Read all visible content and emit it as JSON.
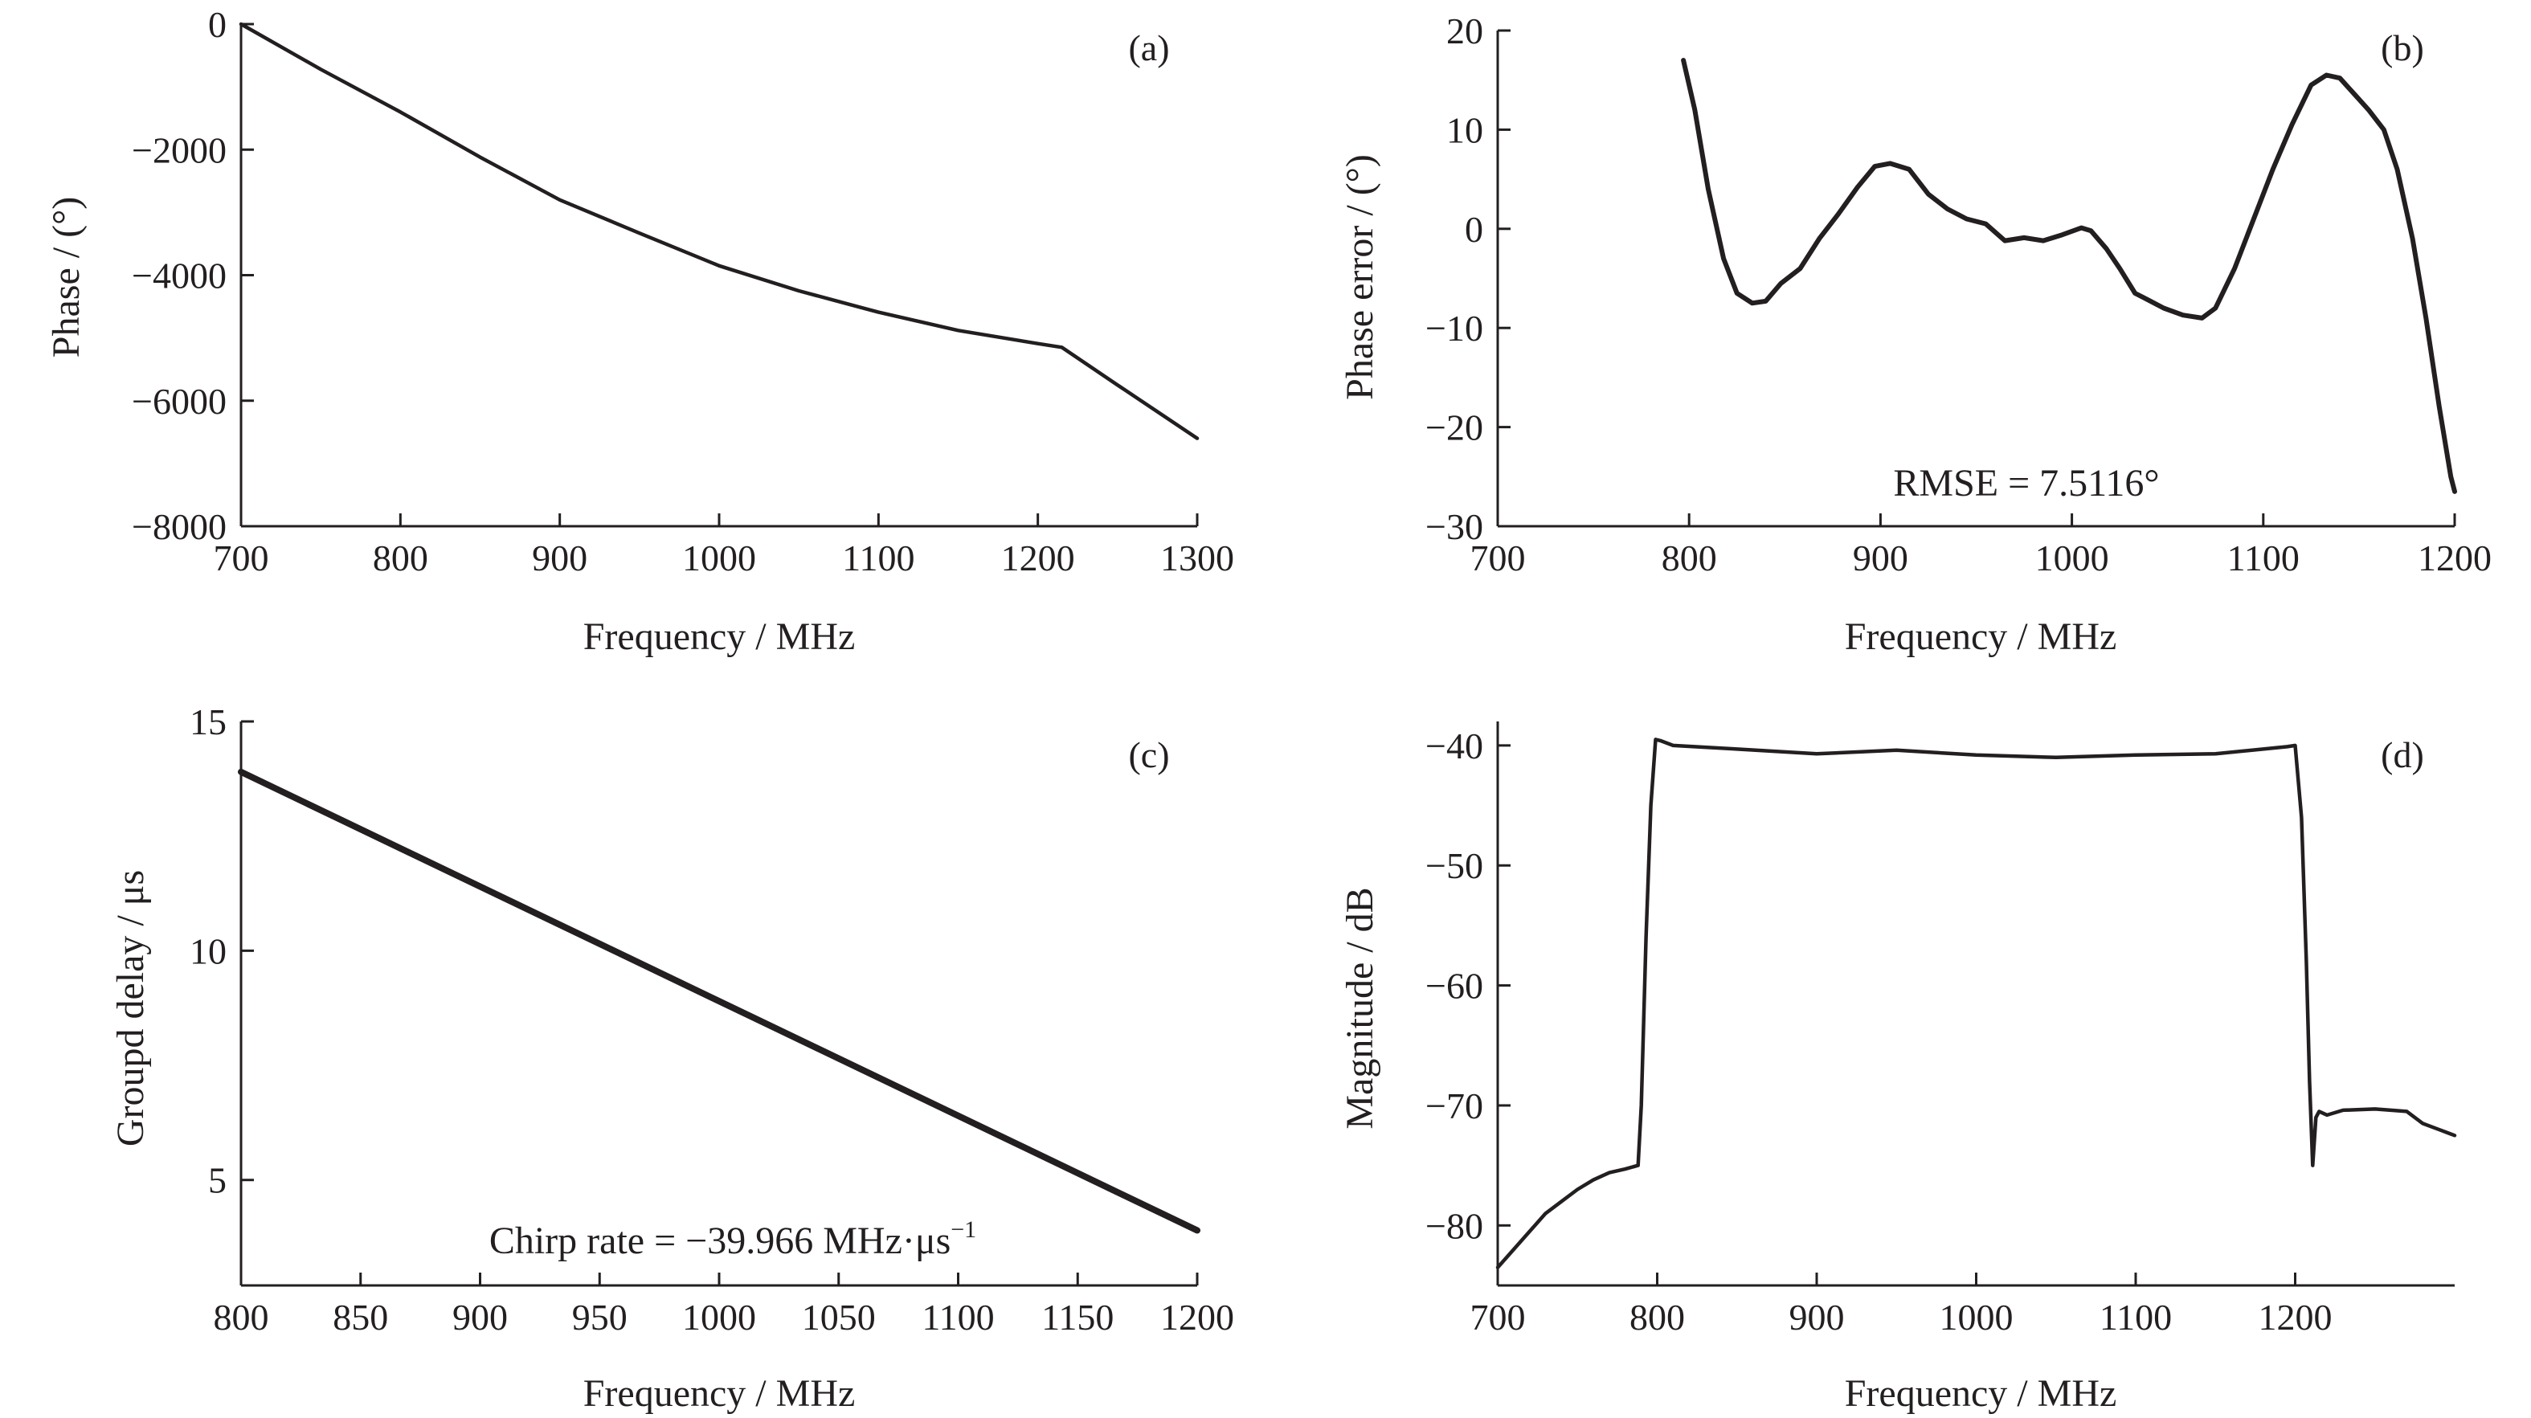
{
  "colors": {
    "ink": "#231f20",
    "background": "#ffffff"
  },
  "chart_data": [
    {
      "id": "a",
      "type": "line",
      "panel_label": "(a)",
      "xlabel": "Frequency / MHz",
      "ylabel": "Phase / (°)",
      "xlim": [
        700,
        1300
      ],
      "ylim": [
        -8000,
        0
      ],
      "xticks": [
        700,
        800,
        900,
        1000,
        1100,
        1200,
        1300
      ],
      "yticks": [
        0,
        -2000,
        -4000,
        -6000,
        -8000
      ],
      "ytick_labels": [
        "0",
        "−2000",
        "−4000",
        "−6000",
        "−8000"
      ],
      "grid": false,
      "annotation": "",
      "series": [
        {
          "x": [
            700,
            750,
            800,
            850,
            900,
            950,
            1000,
            1050,
            1100,
            1150,
            1200,
            1215,
            1250,
            1300
          ],
          "y": [
            0,
            -720,
            -1400,
            -2120,
            -2800,
            -3330,
            -3850,
            -4250,
            -4590,
            -4880,
            -5090,
            -5150,
            -5750,
            -6600
          ]
        }
      ]
    },
    {
      "id": "b",
      "type": "line",
      "panel_label": "(b)",
      "xlabel": "Frequency / MHz",
      "ylabel": "Phase error / (°)",
      "xlim": [
        700,
        1200
      ],
      "ylim": [
        -30,
        20
      ],
      "xticks": [
        700,
        800,
        900,
        1000,
        1100,
        1200
      ],
      "yticks": [
        20,
        10,
        0,
        -10,
        -20,
        -30
      ],
      "ytick_labels": [
        "20",
        "10",
        "0",
        "−10",
        "−20",
        "−30"
      ],
      "grid": false,
      "annotation": "RMSE = 7.5116°",
      "series": [
        {
          "x": [
            797,
            803,
            810,
            818,
            825,
            833,
            840,
            848,
            858,
            868,
            878,
            888,
            897,
            905,
            915,
            925,
            935,
            945,
            955,
            965,
            975,
            985,
            995,
            1005,
            1010,
            1018,
            1025,
            1033,
            1040,
            1048,
            1058,
            1068,
            1075,
            1085,
            1095,
            1105,
            1115,
            1125,
            1133,
            1140,
            1148,
            1155,
            1163,
            1170,
            1178,
            1185,
            1192,
            1198,
            1200
          ],
          "y": [
            17,
            12,
            4,
            -3,
            -6.5,
            -7.5,
            -7.3,
            -5.5,
            -4,
            -1,
            1.5,
            4.2,
            6.3,
            6.6,
            6,
            3.5,
            2,
            1,
            0.5,
            -1.2,
            -0.9,
            -1.2,
            -0.6,
            0.1,
            -0.2,
            -2,
            -4,
            -6.5,
            -7.2,
            -8,
            -8.7,
            -9,
            -8,
            -4,
            1,
            6,
            10.5,
            14.5,
            15.5,
            15.2,
            13.5,
            12,
            10,
            6,
            -1,
            -9,
            -18,
            -25,
            -26.5
          ]
        }
      ]
    },
    {
      "id": "c",
      "type": "line",
      "panel_label": "(c)",
      "xlabel": "Frequency / MHz",
      "ylabel": "Groupd delay / μs",
      "xlim": [
        800,
        1200
      ],
      "ylim": [
        2.7,
        15
      ],
      "xticks": [
        800,
        850,
        900,
        950,
        1000,
        1050,
        1100,
        1150,
        1200
      ],
      "yticks": [
        15,
        10,
        5
      ],
      "ytick_labels": [
        "15",
        "10",
        "5"
      ],
      "grid": false,
      "annotation_main": "Chirp rate = −39.966 MHz·μs",
      "annotation_sup": "−1",
      "series": [
        {
          "x": [
            800,
            1200
          ],
          "y": [
            13.9,
            3.9
          ]
        }
      ]
    },
    {
      "id": "d",
      "type": "line",
      "panel_label": "(d)",
      "xlabel": "Frequency / MHz",
      "ylabel": "Magnitude / dB",
      "xlim": [
        700,
        1300
      ],
      "ylim": [
        -85,
        -38
      ],
      "xticks": [
        700,
        800,
        900,
        1000,
        1100,
        1200
      ],
      "yticks": [
        -40,
        -50,
        -60,
        -70,
        -80
      ],
      "ytick_labels": [
        "−40",
        "−50",
        "−60",
        "−70",
        "−80"
      ],
      "grid": false,
      "annotation": "",
      "series": [
        {
          "x": [
            700,
            710,
            720,
            730,
            740,
            750,
            760,
            770,
            780,
            788,
            790,
            793,
            796,
            799,
            802,
            810,
            850,
            900,
            950,
            1000,
            1050,
            1100,
            1150,
            1195,
            1200,
            1204,
            1207,
            1209,
            1211,
            1213,
            1215,
            1220,
            1230,
            1250,
            1270,
            1280,
            1290,
            1300
          ],
          "y": [
            -83.5,
            -82,
            -80.5,
            -79,
            -78,
            -77,
            -76.2,
            -75.6,
            -75.3,
            -75,
            -70,
            -56,
            -45,
            -39.5,
            -39.6,
            -40,
            -40.3,
            -40.7,
            -40.4,
            -40.8,
            -41,
            -40.8,
            -40.7,
            -40.1,
            -40,
            -46,
            -58,
            -68,
            -75,
            -71,
            -70.5,
            -70.8,
            -70.4,
            -70.3,
            -70.5,
            -71.5,
            -72,
            -72.5
          ]
        }
      ]
    }
  ]
}
